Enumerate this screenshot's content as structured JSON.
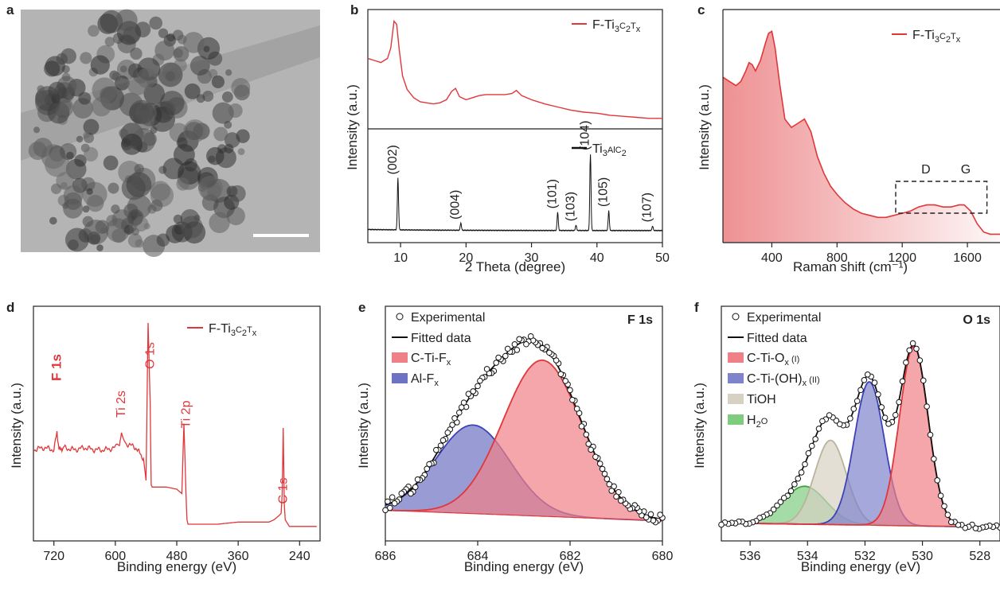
{
  "panels": [
    {
      "id": "a",
      "label": "a",
      "kind": "tem-image"
    },
    {
      "id": "b",
      "label": "b",
      "xlabel": "2 Theta (degree)",
      "ylabel": "Intensity (a.u.)"
    },
    {
      "id": "c",
      "label": "c",
      "xlabel": "Raman shift (cm⁻¹)",
      "ylabel": "Intensity (a.u.)",
      "annotations": [
        "D",
        "G"
      ]
    },
    {
      "id": "d",
      "label": "d",
      "xlabel": "Binding energy (eV)",
      "ylabel": "Intensity (a.u.)"
    },
    {
      "id": "e",
      "label": "e",
      "xlabel": "Binding energy (eV)",
      "ylabel": "Intensity (a.u.)",
      "corner": "F 1s"
    },
    {
      "id": "f",
      "label": "f",
      "xlabel": "Binding energy (eV)",
      "ylabel": "Intensity (a.u.)",
      "corner": "O 1s"
    }
  ],
  "legend": {
    "f_ti3c2tx": {
      "pre": "F-Ti",
      "s1": "3",
      "mid": "C",
      "s2": "2",
      "t": "T",
      "s3": "x"
    },
    "ti3alc2": {
      "pre": "Ti",
      "s1": "3",
      "mid": "AlC",
      "s2": "2"
    },
    "e_items": [
      "Experimental",
      "Fitted data",
      "C-Ti-F",
      "Al-F"
    ],
    "e_subs": [
      "x",
      "x"
    ],
    "f_items": [
      "Experimental",
      "Fitted data",
      "C-Ti-O",
      "C-Ti-(OH)",
      "TiOH",
      "H",
      "O"
    ],
    "f_subs": [
      "x",
      "x",
      "2"
    ],
    "f_suffix": [
      " (I)",
      " (II)"
    ]
  },
  "chart_data": [
    {
      "panel": "b",
      "type": "line",
      "xlim": [
        5,
        50
      ],
      "xticks": [
        "10",
        "20",
        "30",
        "40",
        "50"
      ],
      "series": [
        {
          "name": "F-Ti3C2Tx",
          "color": "#e0373a",
          "x": [
            5,
            6,
            7,
            8,
            8.5,
            9,
            9.4,
            9.8,
            10.3,
            11,
            12,
            13,
            14,
            15,
            16,
            17,
            17.8,
            18.4,
            19,
            20,
            21,
            22,
            23,
            24,
            25,
            26,
            27,
            27.7,
            28.5,
            30,
            32,
            34,
            36,
            38,
            40,
            42,
            44,
            46,
            48,
            50
          ],
          "y": [
            0.62,
            0.6,
            0.58,
            0.62,
            0.72,
            0.98,
            0.95,
            0.7,
            0.45,
            0.32,
            0.24,
            0.2,
            0.19,
            0.18,
            0.19,
            0.22,
            0.3,
            0.33,
            0.25,
            0.22,
            0.24,
            0.26,
            0.27,
            0.27,
            0.27,
            0.27,
            0.28,
            0.31,
            0.26,
            0.22,
            0.18,
            0.15,
            0.12,
            0.1,
            0.09,
            0.07,
            0.06,
            0.05,
            0.04,
            0.04
          ]
        },
        {
          "name": "Ti3AlC2",
          "color": "#111111",
          "peaks": [
            {
              "x": 9.6,
              "h": 0.58,
              "label": "(002)"
            },
            {
              "x": 19.2,
              "h": 0.08,
              "label": "(004)"
            },
            {
              "x": 34.0,
              "h": 0.2,
              "label": "(101)"
            },
            {
              "x": 36.8,
              "h": 0.06,
              "label": "(103)"
            },
            {
              "x": 39.0,
              "h": 0.85,
              "label": "(104)"
            },
            {
              "x": 41.8,
              "h": 0.22,
              "label": "(105)"
            },
            {
              "x": 48.5,
              "h": 0.05,
              "label": "(107)"
            }
          ]
        }
      ]
    },
    {
      "panel": "c",
      "type": "area",
      "xlim": [
        100,
        1800
      ],
      "xticks": [
        "400",
        "800",
        "1200",
        "1600"
      ],
      "series": [
        {
          "name": "F-Ti3C2Tx",
          "color": "#e0373a",
          "x": [
            100,
            140,
            180,
            210,
            240,
            260,
            280,
            300,
            330,
            360,
            380,
            400,
            420,
            450,
            480,
            520,
            560,
            600,
            640,
            680,
            720,
            760,
            800,
            850,
            900,
            950,
            1000,
            1050,
            1100,
            1150,
            1200,
            1250,
            1300,
            1350,
            1400,
            1450,
            1500,
            1550,
            1580,
            1620,
            1660,
            1700,
            1740,
            1800
          ],
          "y": [
            0.76,
            0.74,
            0.72,
            0.74,
            0.79,
            0.83,
            0.82,
            0.79,
            0.84,
            0.92,
            0.97,
            0.98,
            0.9,
            0.72,
            0.56,
            0.52,
            0.54,
            0.56,
            0.5,
            0.38,
            0.3,
            0.24,
            0.2,
            0.16,
            0.13,
            0.11,
            0.1,
            0.09,
            0.09,
            0.1,
            0.11,
            0.12,
            0.14,
            0.15,
            0.15,
            0.14,
            0.14,
            0.15,
            0.15,
            0.12,
            0.06,
            0.02,
            0.01,
            0.01
          ]
        }
      ]
    },
    {
      "panel": "d",
      "type": "line",
      "xlim": [
        760,
        200
      ],
      "xticks": [
        "720",
        "600",
        "480",
        "360",
        "240"
      ],
      "series": [
        {
          "name": "F-Ti3C2Tx",
          "color": "#e0373a",
          "x": [
            760,
            740,
            720,
            714,
            710,
            700,
            680,
            660,
            640,
            620,
            600,
            592,
            588,
            580,
            560,
            545,
            540,
            536,
            532,
            530,
            528,
            520,
            500,
            480,
            470,
            466,
            464,
            462,
            461,
            460,
            458,
            440,
            400,
            360,
            320,
            300,
            290,
            280,
            276,
            274,
            272,
            270,
            268,
            260,
            240,
            220,
            205
          ],
          "y": [
            0.38,
            0.39,
            0.38,
            0.46,
            0.38,
            0.39,
            0.38,
            0.39,
            0.38,
            0.38,
            0.39,
            0.41,
            0.45,
            0.41,
            0.39,
            0.34,
            0.24,
            0.96,
            0.6,
            0.22,
            0.21,
            0.21,
            0.21,
            0.2,
            0.18,
            0.5,
            0.35,
            0.18,
            0.12,
            0.06,
            0.04,
            0.04,
            0.04,
            0.05,
            0.05,
            0.05,
            0.06,
            0.08,
            0.09,
            0.18,
            0.48,
            0.14,
            0.06,
            0.03,
            0.03,
            0.03,
            0.03
          ]
        }
      ],
      "annotations": [
        {
          "x": 714,
          "text": "F 1s"
        },
        {
          "x": 589,
          "text": "Ti 2s"
        },
        {
          "x": 532,
          "text": "O 1s"
        },
        {
          "x": 462,
          "text": "Ti 2p"
        },
        {
          "x": 272,
          "text": "C 1s"
        }
      ]
    },
    {
      "panel": "e",
      "type": "line",
      "xlim": [
        686,
        680
      ],
      "xticks": [
        "686",
        "684",
        "682",
        "680"
      ],
      "background": {
        "a": 0.05,
        "b": 0.1
      },
      "series": [
        {
          "name": "C-Ti-Fx",
          "color": "#e0373a",
          "fill": "#f08088",
          "center": 682.6,
          "amp": 0.74,
          "sigma": 0.85
        },
        {
          "name": "Al-Fx",
          "color": "#3d43b5",
          "fill": "#6e72c2",
          "center": 684.1,
          "amp": 0.42,
          "sigma": 0.8
        },
        {
          "name": "Fitted data",
          "color": "#111111"
        },
        {
          "name": "Experimental",
          "color": "#111111"
        }
      ]
    },
    {
      "panel": "f",
      "type": "line",
      "xlim": [
        537,
        527.3
      ],
      "xticks": [
        "536",
        "534",
        "532",
        "530",
        "528"
      ],
      "background": {
        "a": 0.02,
        "b": 0.04
      },
      "series": [
        {
          "name": "C-Ti-Ox (I)",
          "color": "#e0373a",
          "fill": "#f08088",
          "center": 530.3,
          "amp": 0.85,
          "sigma": 0.5
        },
        {
          "name": "C-Ti-(OH)x (II)",
          "color": "#3d43b5",
          "fill": "#7f83cc",
          "center": 531.85,
          "amp": 0.68,
          "sigma": 0.52
        },
        {
          "name": "TiOH",
          "color": "#b9b39b",
          "fill": "#d7d1c3",
          "center": 533.2,
          "amp": 0.4,
          "sigma": 0.55
        },
        {
          "name": "H2O",
          "color": "#3aa53a",
          "fill": "#7fcc7f",
          "center": 534.1,
          "amp": 0.18,
          "sigma": 0.75
        },
        {
          "name": "Fitted data",
          "color": "#111111"
        },
        {
          "name": "Experimental",
          "color": "#111111"
        }
      ]
    }
  ]
}
